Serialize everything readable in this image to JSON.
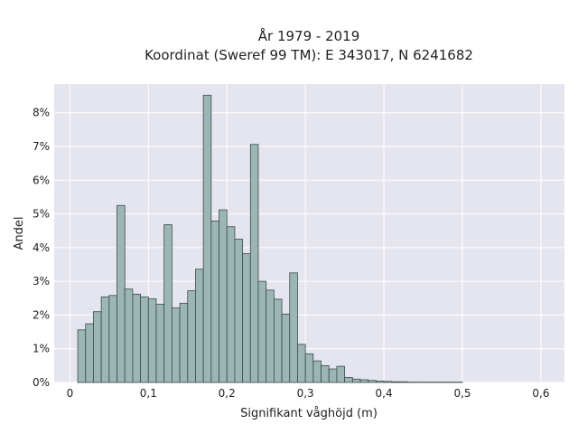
{
  "chart_data": {
    "type": "bar",
    "title_line1": "År 1979 - 2019",
    "title_line2": "Koordinat (Sweref 99 TM): E 343017, N 6241682",
    "xlabel": "Signifikant våghöjd (m)",
    "ylabel": "Andel",
    "xlim": [
      -0.02,
      0.63
    ],
    "ylim": [
      0,
      0.0885
    ],
    "x_ticks": [
      {
        "value": 0.0,
        "label": "0"
      },
      {
        "value": 0.1,
        "label": "0,1"
      },
      {
        "value": 0.2,
        "label": "0,2"
      },
      {
        "value": 0.3,
        "label": "0,3"
      },
      {
        "value": 0.4,
        "label": "0,4"
      },
      {
        "value": 0.5,
        "label": "0,5"
      },
      {
        "value": 0.6,
        "label": "0,6"
      }
    ],
    "y_ticks": [
      {
        "value": 0.0,
        "label": "0%"
      },
      {
        "value": 0.01,
        "label": "1%"
      },
      {
        "value": 0.02,
        "label": "2%"
      },
      {
        "value": 0.03,
        "label": "3%"
      },
      {
        "value": 0.04,
        "label": "4%"
      },
      {
        "value": 0.05,
        "label": "5%"
      },
      {
        "value": 0.06,
        "label": "6%"
      },
      {
        "value": 0.07,
        "label": "7%"
      },
      {
        "value": 0.08,
        "label": "8%"
      }
    ],
    "grid": true,
    "bin_width": 0.01,
    "bin_starts": [
      0.01,
      0.02,
      0.03,
      0.04,
      0.05,
      0.06,
      0.07,
      0.08,
      0.09,
      0.1,
      0.11,
      0.12,
      0.13,
      0.14,
      0.15,
      0.16,
      0.17,
      0.18,
      0.19,
      0.2,
      0.21,
      0.22,
      0.23,
      0.24,
      0.25,
      0.26,
      0.27,
      0.28,
      0.29,
      0.3,
      0.31,
      0.32,
      0.33,
      0.34,
      0.35,
      0.36,
      0.37,
      0.38,
      0.39,
      0.4,
      0.41,
      0.42,
      0.43,
      0.44,
      0.45,
      0.46,
      0.47,
      0.48,
      0.49,
      0.5,
      0.51,
      0.52,
      0.53,
      0.54
    ],
    "values": [
      0.0156,
      0.0174,
      0.021,
      0.0254,
      0.0258,
      0.0525,
      0.0277,
      0.0262,
      0.0254,
      0.0248,
      0.0232,
      0.0468,
      0.0221,
      0.0235,
      0.0272,
      0.0336,
      0.0852,
      0.0479,
      0.0512,
      0.0462,
      0.0425,
      0.0382,
      0.0706,
      0.03,
      0.0274,
      0.0247,
      0.0203,
      0.0325,
      0.0113,
      0.0085,
      0.0064,
      0.005,
      0.004,
      0.0048,
      0.0015,
      0.001,
      0.0008,
      0.0006,
      0.0004,
      0.0003,
      0.0002,
      0.0002,
      0.0001,
      0.0001,
      0.0001,
      0.0001,
      0.0001,
      0.0001,
      0.0001,
      0.0,
      0.0,
      0.0,
      0.0,
      0.0
    ],
    "colors": {
      "plot_background": "#e5e5ef",
      "grid": "#ffffff",
      "bar_fill": "#9cb5b5",
      "bar_stroke": "#3d4c4c"
    }
  }
}
